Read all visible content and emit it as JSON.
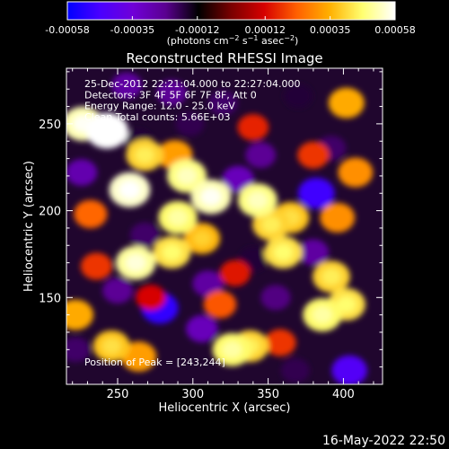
{
  "chart_data": {
    "type": "heatmap",
    "title": "Reconstructed RHESSI Image",
    "xlabel": "Heliocentric X (arcsec)",
    "ylabel": "Heliocentric Y (arcsec)",
    "xlim": [
      216,
      426
    ],
    "ylim": [
      100,
      282
    ],
    "x_ticks": [
      "250",
      "300",
      "350",
      "400"
    ],
    "x_tick_values": [
      250,
      300,
      350,
      400
    ],
    "y_ticks": [
      "150",
      "200",
      "250"
    ],
    "y_tick_values": [
      150,
      200,
      250
    ],
    "colorbar": {
      "ticks": [
        "-0.00058",
        "-0.00035",
        "-0.00012",
        "0.00012",
        "0.00035",
        "0.00058"
      ],
      "tick_values": [
        -0.00058,
        -0.00035,
        -0.00012,
        0.00012,
        0.00035,
        0.00058
      ],
      "range": [
        -0.00058,
        0.00058
      ]
    },
    "annotations": [
      "25-Dec-2012 22:21:04.000 to 22:27:04.000",
      "Detectors: 3F 4F 5F 6F 7F 8F, Att 0",
      "Energy Range: 12.0 - 25.0 keV",
      "Clean    Total counts: 5.66E+03"
    ],
    "peak_label": "Position of Peak = [243,244]",
    "peak": [
      243,
      244
    ],
    "sources": [
      {
        "x": 243,
        "y": 246,
        "value": 0.00058
      },
      {
        "x": 227,
        "y": 250,
        "value": 0.00052
      },
      {
        "x": 258,
        "y": 212,
        "value": 0.00054
      },
      {
        "x": 262,
        "y": 170,
        "value": 0.0005
      },
      {
        "x": 312,
        "y": 208,
        "value": 0.00052
      },
      {
        "x": 296,
        "y": 220,
        "value": 0.00048
      },
      {
        "x": 290,
        "y": 196,
        "value": 0.00046
      },
      {
        "x": 286,
        "y": 176,
        "value": 0.00042
      },
      {
        "x": 306,
        "y": 184,
        "value": 0.00036
      },
      {
        "x": 288,
        "y": 232,
        "value": 0.00032
      },
      {
        "x": 268,
        "y": 232,
        "value": 0.0004
      },
      {
        "x": 343,
        "y": 206,
        "value": 0.00048
      },
      {
        "x": 352,
        "y": 192,
        "value": 0.0004
      },
      {
        "x": 365,
        "y": 196,
        "value": 0.00038
      },
      {
        "x": 360,
        "y": 176,
        "value": 0.00042
      },
      {
        "x": 392,
        "y": 162,
        "value": 0.0004
      },
      {
        "x": 402,
        "y": 146,
        "value": 0.00042
      },
      {
        "x": 396,
        "y": 196,
        "value": 0.0003
      },
      {
        "x": 402,
        "y": 262,
        "value": 0.00034
      },
      {
        "x": 408,
        "y": 222,
        "value": 0.0003
      },
      {
        "x": 386,
        "y": 140,
        "value": 0.00046
      },
      {
        "x": 326,
        "y": 120,
        "value": 0.00046
      },
      {
        "x": 338,
        "y": 122,
        "value": 0.0004
      },
      {
        "x": 246,
        "y": 122,
        "value": 0.00038
      },
      {
        "x": 264,
        "y": 116,
        "value": 0.00032
      },
      {
        "x": 222,
        "y": 140,
        "value": 0.00034
      },
      {
        "x": 318,
        "y": 146,
        "value": 0.00022
      },
      {
        "x": 358,
        "y": 124,
        "value": 0.00018
      },
      {
        "x": 232,
        "y": 198,
        "value": 0.00024
      },
      {
        "x": 236,
        "y": 168,
        "value": 0.00018
      },
      {
        "x": 340,
        "y": 248,
        "value": 0.00016
      },
      {
        "x": 380,
        "y": 232,
        "value": 0.00018
      },
      {
        "x": 272,
        "y": 150,
        "value": 0.00012
      },
      {
        "x": 328,
        "y": 164,
        "value": 0.00014
      },
      {
        "x": 256,
        "y": 272,
        "value": -0.00026
      },
      {
        "x": 286,
        "y": 268,
        "value": -0.00024
      },
      {
        "x": 320,
        "y": 262,
        "value": -0.0002
      },
      {
        "x": 226,
        "y": 222,
        "value": -0.00028
      },
      {
        "x": 268,
        "y": 186,
        "value": -0.0002
      },
      {
        "x": 222,
        "y": 120,
        "value": -0.0002
      },
      {
        "x": 278,
        "y": 144,
        "value": -0.0005
      },
      {
        "x": 306,
        "y": 132,
        "value": -0.0003
      },
      {
        "x": 310,
        "y": 158,
        "value": -0.00026
      },
      {
        "x": 330,
        "y": 218,
        "value": -0.0003
      },
      {
        "x": 345,
        "y": 232,
        "value": -0.00024
      },
      {
        "x": 382,
        "y": 210,
        "value": -0.00048
      },
      {
        "x": 392,
        "y": 236,
        "value": -0.0002
      },
      {
        "x": 355,
        "y": 150,
        "value": -0.00022
      },
      {
        "x": 380,
        "y": 176,
        "value": -0.00026
      },
      {
        "x": 404,
        "y": 108,
        "value": -0.00044
      },
      {
        "x": 368,
        "y": 108,
        "value": -0.00018
      },
      {
        "x": 264,
        "y": 240,
        "value": -0.00016
      },
      {
        "x": 250,
        "y": 154,
        "value": -0.00024
      },
      {
        "x": 340,
        "y": 172,
        "value": -0.00016
      },
      {
        "x": 298,
        "y": 250,
        "value": -0.00018
      },
      {
        "x": 370,
        "y": 266,
        "value": -0.00016
      }
    ]
  },
  "footer": {
    "datetime": "16-May-2022 22:50"
  },
  "colors": {
    "colormap": [
      "#0000ff",
      "#4a00ff",
      "#7000d8",
      "#5a0090",
      "#000000",
      "#7a0000",
      "#d60000",
      "#ff6000",
      "#ffb000",
      "#ffff70",
      "#ffffff"
    ]
  }
}
